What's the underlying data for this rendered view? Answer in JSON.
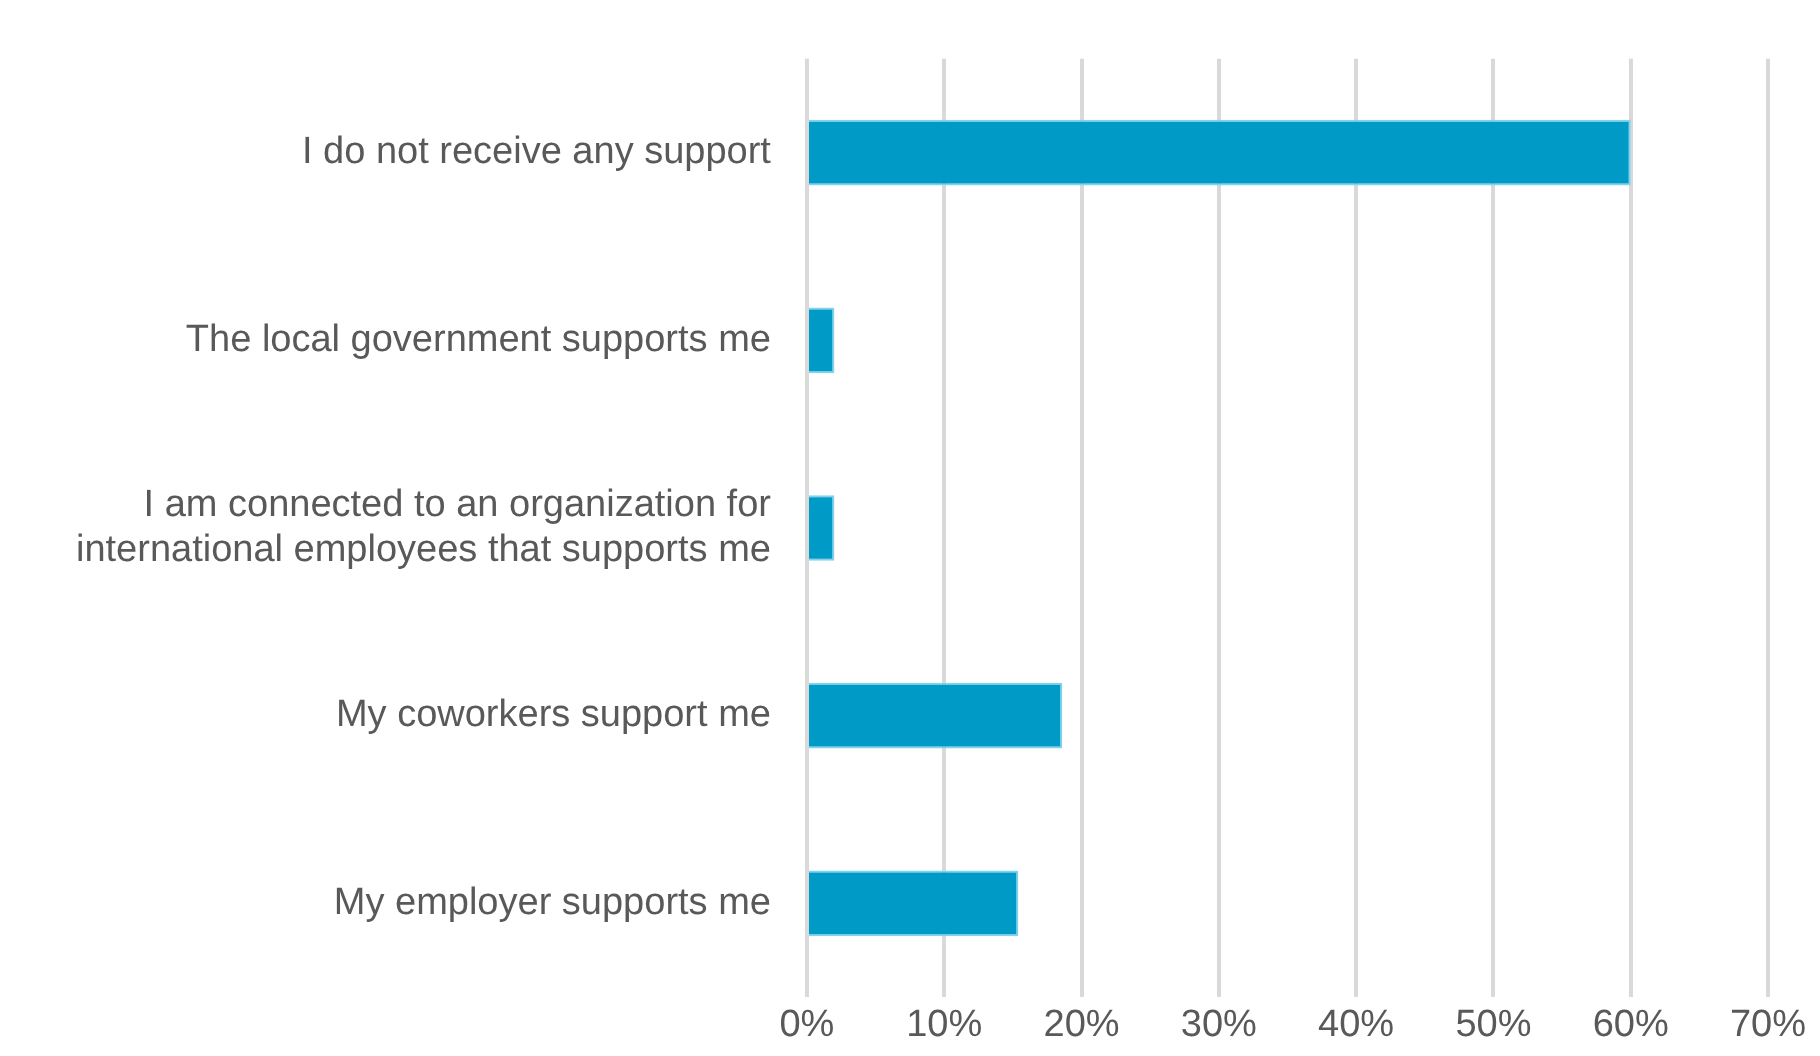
{
  "chart_data": {
    "type": "bar",
    "orientation": "horizontal",
    "categories": [
      "I do not receive any support",
      "The local government supports me",
      "I am connected to an organization for international employees that supports me",
      "My coworkers support me",
      "My employer supports me"
    ],
    "values": [
      60,
      2,
      2,
      18.6,
      15.4
    ],
    "color": "#009ac7",
    "xlim": [
      0,
      70
    ],
    "xticks": [
      {
        "value": 0,
        "label": "0%"
      },
      {
        "value": 10,
        "label": "10%"
      },
      {
        "value": 20,
        "label": "20%"
      },
      {
        "value": 30,
        "label": "30%"
      },
      {
        "value": 40,
        "label": "40%"
      },
      {
        "value": 50,
        "label": "50%"
      },
      {
        "value": 60,
        "label": "60%"
      },
      {
        "value": 70,
        "label": "70%"
      }
    ],
    "grid": "x",
    "legend": false
  }
}
